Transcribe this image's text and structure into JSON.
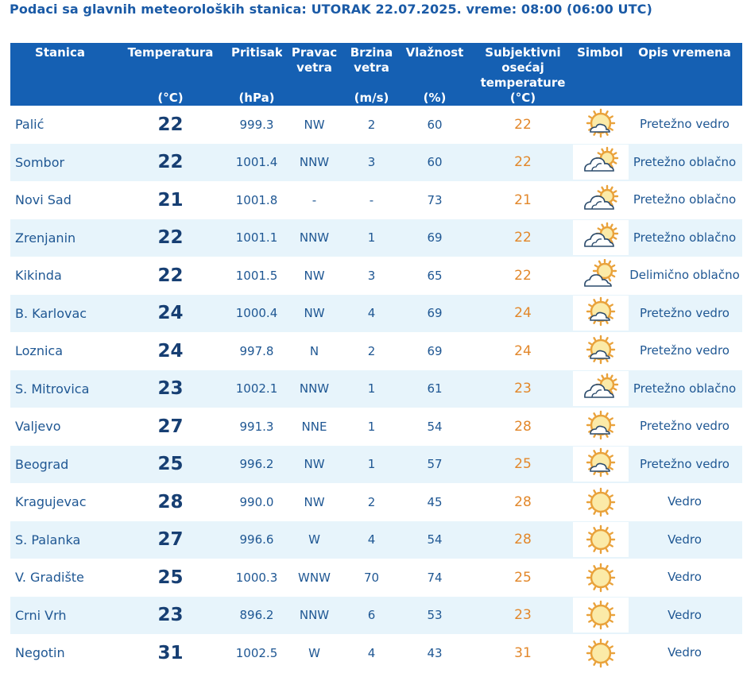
{
  "title": "Podaci sa glavnih meteoroloških stanica:  UTORAK 22.07.2025.  vreme: 08:00 (06:00 UTC)",
  "headers": {
    "station": "Stanica",
    "temperature": "Temperatura",
    "temperature_unit": "(°C)",
    "pressure": "Pritisak",
    "pressure_unit": "(hPa)",
    "wind_dir": "Pravac vetra",
    "wind_speed": "Brzina vetra",
    "wind_speed_unit": "(m/s)",
    "humidity": "Vlažnost",
    "humidity_unit": "(%)",
    "feels_like": "Subjektivni osećaj temperature (°C)",
    "symbol": "Simbol",
    "description": "Opis vremena"
  },
  "rows": [
    {
      "station": "Palić",
      "temp": "22",
      "pressure": "999.3",
      "wind_dir": "NW",
      "wind_speed": "2",
      "humidity": "60",
      "feels": "22",
      "icon": "mostly-clear-icon",
      "desc": "Pretežno vedro"
    },
    {
      "station": "Sombor",
      "temp": "22",
      "pressure": "1001.4",
      "wind_dir": "NNW",
      "wind_speed": "3",
      "humidity": "60",
      "feels": "22",
      "icon": "mostly-cloudy-icon",
      "desc": "Pretežno oblačno"
    },
    {
      "station": "Novi Sad",
      "temp": "21",
      "pressure": "1001.8",
      "wind_dir": "-",
      "wind_speed": "-",
      "humidity": "73",
      "feels": "21",
      "icon": "mostly-cloudy-icon",
      "desc": "Pretežno oblačno"
    },
    {
      "station": "Zrenjanin",
      "temp": "22",
      "pressure": "1001.1",
      "wind_dir": "NNW",
      "wind_speed": "1",
      "humidity": "69",
      "feels": "22",
      "icon": "mostly-cloudy-icon",
      "desc": "Pretežno oblačno"
    },
    {
      "station": "Kikinda",
      "temp": "22",
      "pressure": "1001.5",
      "wind_dir": "NW",
      "wind_speed": "3",
      "humidity": "65",
      "feels": "22",
      "icon": "partly-cloudy-icon",
      "desc": "Delimično oblačno"
    },
    {
      "station": "B. Karlovac",
      "temp": "24",
      "pressure": "1000.4",
      "wind_dir": "NW",
      "wind_speed": "4",
      "humidity": "69",
      "feels": "24",
      "icon": "mostly-clear-icon",
      "desc": "Pretežno vedro"
    },
    {
      "station": "Loznica",
      "temp": "24",
      "pressure": "997.8",
      "wind_dir": "N",
      "wind_speed": "2",
      "humidity": "69",
      "feels": "24",
      "icon": "mostly-clear-icon",
      "desc": "Pretežno vedro"
    },
    {
      "station": "S. Mitrovica",
      "temp": "23",
      "pressure": "1002.1",
      "wind_dir": "NNW",
      "wind_speed": "1",
      "humidity": "61",
      "feels": "23",
      "icon": "mostly-cloudy-icon",
      "desc": "Pretežno oblačno"
    },
    {
      "station": "Valjevo",
      "temp": "27",
      "pressure": "991.3",
      "wind_dir": "NNE",
      "wind_speed": "1",
      "humidity": "54",
      "feels": "28",
      "icon": "mostly-clear-icon",
      "desc": "Pretežno vedro"
    },
    {
      "station": "Beograd",
      "temp": "25",
      "pressure": "996.2",
      "wind_dir": "NW",
      "wind_speed": "1",
      "humidity": "57",
      "feels": "25",
      "icon": "mostly-clear-icon",
      "desc": "Pretežno vedro"
    },
    {
      "station": "Kragujevac",
      "temp": "28",
      "pressure": "990.0",
      "wind_dir": "NW",
      "wind_speed": "2",
      "humidity": "45",
      "feels": "28",
      "icon": "clear-sun-icon",
      "desc": "Vedro"
    },
    {
      "station": "S. Palanka",
      "temp": "27",
      "pressure": "996.6",
      "wind_dir": "W",
      "wind_speed": "4",
      "humidity": "54",
      "feels": "28",
      "icon": "clear-sun-icon",
      "desc": "Vedro"
    },
    {
      "station": "V. Gradište",
      "temp": "25",
      "pressure": "1000.3",
      "wind_dir": "WNW",
      "wind_speed": "70",
      "humidity": "74",
      "feels": "25",
      "icon": "clear-sun-icon",
      "desc": "Vedro"
    },
    {
      "station": "Crni Vrh",
      "temp": "23",
      "pressure": "896.2",
      "wind_dir": "NNW",
      "wind_speed": "6",
      "humidity": "53",
      "feels": "23",
      "icon": "clear-sun-icon",
      "desc": "Vedro"
    },
    {
      "station": "Negotin",
      "temp": "31",
      "pressure": "1002.5",
      "wind_dir": "W",
      "wind_speed": "4",
      "humidity": "43",
      "feels": "31",
      "icon": "clear-sun-icon",
      "desc": "Vedro"
    }
  ]
}
